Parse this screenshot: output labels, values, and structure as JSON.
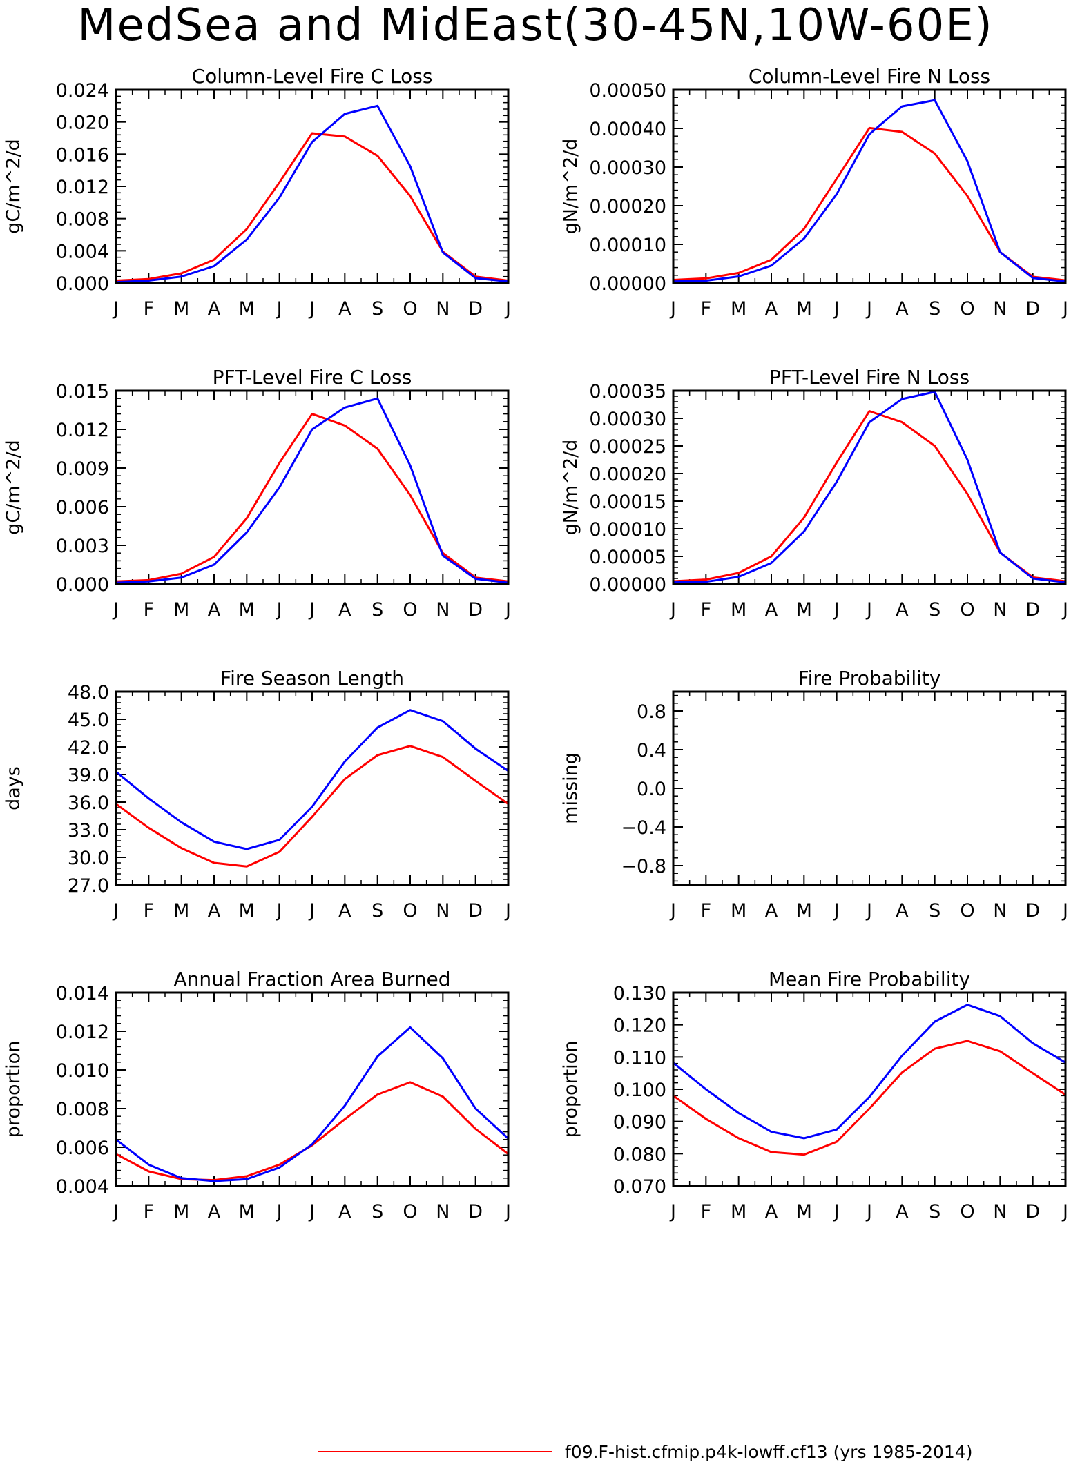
{
  "page": {
    "title": "MedSea and MidEast(30-45N,10W-60E)",
    "legend_entry": "f09.F-hist.cfmip.p4k-lowff.cf13 (yrs 1985-2014)",
    "legend_color": "#ff0000"
  },
  "colors": {
    "series_red": "#ff0000",
    "series_blue": "#0000ff"
  },
  "chart_data": [
    {
      "type": "line",
      "title": "Column-Level Fire C Loss",
      "ylabel": "gC/m^2/d",
      "categories": [
        "J",
        "F",
        "M",
        "A",
        "M",
        "J",
        "J",
        "A",
        "S",
        "O",
        "N",
        "D",
        "J"
      ],
      "ylim": [
        0,
        0.024
      ],
      "yticks": [
        0,
        0.004,
        0.008,
        0.012,
        0.016,
        0.02,
        0.024
      ],
      "ytick_labels": [
        "0.000",
        "0.004",
        "0.008",
        "0.012",
        "0.016",
        "0.020",
        "0.024"
      ],
      "series": [
        {
          "color": "#ff0000",
          "values": [
            0.0003,
            0.0005,
            0.0012,
            0.0029,
            0.0067,
            0.0125,
            0.0186,
            0.0182,
            0.0158,
            0.0108,
            0.0039,
            0.0008,
            0.0003
          ]
        },
        {
          "color": "#0000ff",
          "values": [
            0.0001,
            0.0003,
            0.0008,
            0.0021,
            0.0054,
            0.0106,
            0.0175,
            0.021,
            0.022,
            0.0145,
            0.0038,
            0.0006,
            0.0002
          ]
        }
      ]
    },
    {
      "type": "line",
      "title": "Column-Level Fire N Loss",
      "ylabel": "gN/m^2/d",
      "categories": [
        "J",
        "F",
        "M",
        "A",
        "M",
        "J",
        "J",
        "A",
        "S",
        "O",
        "N",
        "D",
        "J"
      ],
      "ylim": [
        0,
        0.0005
      ],
      "yticks": [
        0,
        0.0001,
        0.0002,
        0.0003,
        0.0004,
        0.0005
      ],
      "ytick_labels": [
        "0.00000",
        "0.00010",
        "0.00020",
        "0.00030",
        "0.00040",
        "0.00050"
      ],
      "series": [
        {
          "color": "#ff0000",
          "values": [
            8e-06,
            1.2e-05,
            2.6e-05,
            6e-05,
            0.00014,
            0.00027,
            0.000401,
            0.000391,
            0.000335,
            0.000225,
            8e-05,
            1.6e-05,
            7e-06
          ]
        },
        {
          "color": "#0000ff",
          "values": [
            4e-06,
            6e-06,
            1.7e-05,
            4.5e-05,
            0.000115,
            0.00023,
            0.000385,
            0.000457,
            0.000473,
            0.000315,
            8e-05,
            1.3e-05,
            4e-06
          ]
        }
      ]
    },
    {
      "type": "line",
      "title": "PFT-Level Fire C Loss",
      "ylabel": "gC/m^2/d",
      "categories": [
        "J",
        "F",
        "M",
        "A",
        "M",
        "J",
        "J",
        "A",
        "S",
        "O",
        "N",
        "D",
        "J"
      ],
      "ylim": [
        0,
        0.015
      ],
      "yticks": [
        0,
        0.003,
        0.006,
        0.009,
        0.012,
        0.015
      ],
      "ytick_labels": [
        "0.000",
        "0.003",
        "0.006",
        "0.009",
        "0.012",
        "0.015"
      ],
      "series": [
        {
          "color": "#ff0000",
          "values": [
            0.0002,
            0.0003,
            0.0008,
            0.0021,
            0.0051,
            0.0094,
            0.0132,
            0.0123,
            0.0105,
            0.0069,
            0.0024,
            0.0005,
            0.0002
          ]
        },
        {
          "color": "#0000ff",
          "values": [
            0.0001,
            0.0002,
            0.0005,
            0.0015,
            0.004,
            0.0075,
            0.012,
            0.0137,
            0.0144,
            0.0092,
            0.0022,
            0.0004,
            0.0001
          ]
        }
      ]
    },
    {
      "type": "line",
      "title": "PFT-Level Fire N Loss",
      "ylabel": "gN/m^2/d",
      "categories": [
        "J",
        "F",
        "M",
        "A",
        "M",
        "J",
        "J",
        "A",
        "S",
        "O",
        "N",
        "D",
        "J"
      ],
      "ylim": [
        0,
        0.00035
      ],
      "yticks": [
        0,
        5e-05,
        0.0001,
        0.00015,
        0.0002,
        0.00025,
        0.0003,
        0.00035
      ],
      "ytick_labels": [
        "0.00000",
        "0.00005",
        "0.00010",
        "0.00015",
        "0.00020",
        "0.00025",
        "0.00030",
        "0.00035"
      ],
      "series": [
        {
          "color": "#ff0000",
          "values": [
            5e-06,
            8e-06,
            2e-05,
            5e-05,
            0.00012,
            0.00022,
            0.000313,
            0.000293,
            0.00025,
            0.000163,
            5.7e-05,
            1.2e-05,
            5e-06
          ]
        },
        {
          "color": "#0000ff",
          "values": [
            3e-06,
            4e-06,
            1.3e-05,
            3.8e-05,
            9.5e-05,
            0.000185,
            0.000293,
            0.000335,
            0.000348,
            0.000225,
            5.7e-05,
            1e-05,
            3e-06
          ]
        }
      ]
    },
    {
      "type": "line",
      "title": "Fire Season Length",
      "ylabel": "days",
      "categories": [
        "J",
        "F",
        "M",
        "A",
        "M",
        "J",
        "J",
        "A",
        "S",
        "O",
        "N",
        "D",
        "J"
      ],
      "ylim": [
        27,
        48
      ],
      "yticks": [
        27,
        30,
        33,
        36,
        39,
        42,
        45,
        48
      ],
      "ytick_labels": [
        "27.0",
        "30.0",
        "33.0",
        "36.0",
        "39.0",
        "42.0",
        "45.0",
        "48.0"
      ],
      "series": [
        {
          "color": "#ff0000",
          "values": [
            35.8,
            33.2,
            31.0,
            29.4,
            29.0,
            30.6,
            34.4,
            38.5,
            41.1,
            42.1,
            40.9,
            38.3,
            35.8
          ]
        },
        {
          "color": "#0000ff",
          "values": [
            39.3,
            36.4,
            33.8,
            31.7,
            30.9,
            31.9,
            35.5,
            40.4,
            44.1,
            46.0,
            44.8,
            41.8,
            39.4
          ]
        }
      ]
    },
    {
      "type": "line",
      "title": "Fire Probability",
      "ylabel": "missing",
      "categories": [
        "J",
        "F",
        "M",
        "A",
        "M",
        "J",
        "J",
        "A",
        "S",
        "O",
        "N",
        "D",
        "J"
      ],
      "ylim": [
        -1,
        1
      ],
      "yticks": [
        -0.8,
        -0.4,
        0,
        0.4,
        0.8
      ],
      "ytick_labels": [
        "−0.8",
        "−0.4",
        "0.0",
        "0.4",
        "0.8"
      ],
      "series": []
    },
    {
      "type": "line",
      "title": "Annual Fraction Area Burned",
      "ylabel": "proportion",
      "categories": [
        "J",
        "F",
        "M",
        "A",
        "M",
        "J",
        "J",
        "A",
        "S",
        "O",
        "N",
        "D",
        "J"
      ],
      "ylim": [
        0.004,
        0.014
      ],
      "yticks": [
        0.004,
        0.006,
        0.008,
        0.01,
        0.012,
        0.014
      ],
      "ytick_labels": [
        "0.004",
        "0.006",
        "0.008",
        "0.010",
        "0.012",
        "0.014"
      ],
      "series": [
        {
          "color": "#ff0000",
          "values": [
            0.00565,
            0.00475,
            0.00435,
            0.0043,
            0.0045,
            0.0051,
            0.0061,
            0.00745,
            0.00873,
            0.00936,
            0.00862,
            0.00695,
            0.00565
          ]
        },
        {
          "color": "#0000ff",
          "values": [
            0.0064,
            0.0051,
            0.0044,
            0.00425,
            0.00435,
            0.00495,
            0.00615,
            0.00815,
            0.0107,
            0.0122,
            0.0106,
            0.008,
            0.00645
          ]
        }
      ]
    },
    {
      "type": "line",
      "title": "Mean Fire Probability",
      "ylabel": "proportion",
      "categories": [
        "J",
        "F",
        "M",
        "A",
        "M",
        "J",
        "J",
        "A",
        "S",
        "O",
        "N",
        "D",
        "J"
      ],
      "ylim": [
        0.07,
        0.13
      ],
      "yticks": [
        0.07,
        0.08,
        0.09,
        0.1,
        0.11,
        0.12,
        0.13
      ],
      "ytick_labels": [
        "0.070",
        "0.080",
        "0.090",
        "0.100",
        "0.110",
        "0.120",
        "0.130"
      ],
      "series": [
        {
          "color": "#ff0000",
          "values": [
            0.098,
            0.0908,
            0.0848,
            0.0805,
            0.0797,
            0.0837,
            0.094,
            0.1052,
            0.1126,
            0.115,
            0.1118,
            0.105,
            0.0983
          ]
        },
        {
          "color": "#0000ff",
          "values": [
            0.1082,
            0.1,
            0.0926,
            0.0868,
            0.0848,
            0.0875,
            0.0976,
            0.1104,
            0.121,
            0.1262,
            0.1227,
            0.1143,
            0.1083
          ]
        }
      ]
    }
  ]
}
